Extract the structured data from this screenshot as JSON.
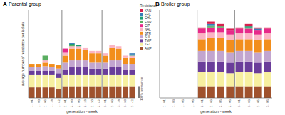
{
  "chart_data": [
    {
      "type": "bar",
      "stacked": true,
      "panel": "A",
      "title": "Parental group",
      "x_label": "generation - week",
      "y_label": "average number of resistance per isolate",
      "tick_labels": "x",
      "legend": "right",
      "annotations": [
        {
          "text": "100% prevalence",
          "value": 1
        }
      ],
      "ylim": [
        0,
        7.5
      ],
      "categories": [
        "1 - 01",
        "1 - 03",
        "1 - 06",
        "1 - 18",
        "1 - 42",
        "2 - 01",
        "2 - 03",
        "2 - 06",
        "2 - 18",
        "2 - 30",
        "2 - 42",
        "3 - 01",
        "3 - 03",
        "3 - 18",
        "3 - 30",
        "3 - 42"
      ],
      "series": [
        {
          "name": "AMP",
          "color": "#a0522d",
          "values": [
            0.9,
            0.9,
            0.9,
            0.9,
            0.8,
            1,
            1,
            1,
            1,
            1,
            1,
            1,
            1,
            1,
            1,
            1
          ]
        },
        {
          "name": "TET",
          "color": "#f7f0a0",
          "values": [
            1.1,
            1.1,
            1.1,
            1.1,
            0.9,
            1,
            1,
            1,
            1,
            1,
            1,
            1,
            1,
            1,
            1,
            1
          ]
        },
        {
          "name": "TMP",
          "color": "#6a3d9a",
          "values": [
            0.3,
            0.3,
            0.3,
            0.3,
            0.4,
            0.4,
            0.6,
            0.6,
            0.6,
            0.5,
            0.5,
            0.5,
            0.6,
            0.6,
            0.4,
            0.4
          ]
        },
        {
          "name": "SUL",
          "color": "#c2a5cf",
          "values": [
            0.3,
            0.3,
            0.4,
            0.3,
            0.4,
            0.6,
            0.6,
            0.6,
            0.6,
            0.5,
            0.5,
            0.5,
            0.6,
            0.6,
            0.5,
            0.5
          ]
        },
        {
          "name": "STR",
          "color": "#f28e1c",
          "values": [
            0.3,
            0.3,
            0.3,
            0.3,
            0.3,
            0.6,
            1.0,
            1.0,
            0.9,
            0.8,
            0.8,
            0.6,
            1.1,
            1.0,
            0.5,
            0.5
          ]
        },
        {
          "name": "NAL",
          "color": "#fbb4c4",
          "values": [
            0,
            0,
            0.2,
            0,
            0,
            0.3,
            0.2,
            0.2,
            0.2,
            0.2,
            0.2,
            0.2,
            0.2,
            0.2,
            0.2,
            0.2
          ]
        },
        {
          "name": "CIP",
          "color": "#e7298a",
          "values": [
            0,
            0,
            0,
            0,
            0,
            0.3,
            0,
            0,
            0,
            0,
            0,
            0,
            0,
            0,
            0,
            0
          ]
        },
        {
          "name": "ENR",
          "color": "#5aae61",
          "values": [
            0,
            0,
            0.4,
            0,
            0,
            0,
            0.1,
            0,
            0,
            0,
            0,
            0,
            0,
            0,
            0,
            0
          ]
        },
        {
          "name": "CHL",
          "color": "#1b9e77",
          "values": [
            0,
            0,
            0,
            0,
            0,
            0,
            0.1,
            0.1,
            0,
            0,
            0,
            0,
            0,
            0,
            0,
            0.1
          ]
        },
        {
          "name": "FFC",
          "color": "#377eb8",
          "values": [
            0,
            0,
            0,
            0,
            0,
            0,
            0.1,
            0,
            0,
            0,
            0,
            0,
            0,
            0,
            0,
            0.1
          ]
        },
        {
          "name": "KAN",
          "color": "#d6204e",
          "values": [
            0,
            0,
            0,
            0,
            0,
            0,
            0,
            0,
            0,
            0,
            0,
            0,
            0,
            0,
            0,
            0
          ]
        }
      ]
    },
    {
      "type": "bar",
      "stacked": true,
      "panel": "B",
      "title": "Broiler group",
      "x_label": "generation - week",
      "tick_labels": "x",
      "ylim": [
        0,
        7.5
      ],
      "categories": [
        "1 - 01",
        "1 - 03",
        "1 - 05",
        "1 - 06",
        "2 - 01",
        "2 - 03",
        "2 - 05",
        "2 - 06",
        "3 - 01",
        "3 - 03",
        "3 - 05",
        "3 - 06"
      ],
      "series": [
        {
          "name": "AMP",
          "values": [
            0,
            0,
            0,
            0,
            1,
            1,
            1,
            1,
            1,
            1,
            1,
            1
          ]
        },
        {
          "name": "TET",
          "values": [
            0,
            0,
            0,
            0,
            1.2,
            1.2,
            1.2,
            1.1,
            1.2,
            1.2,
            1.1,
            1.2
          ]
        },
        {
          "name": "TMP",
          "values": [
            0,
            0,
            0,
            0,
            0.9,
            0.9,
            0.9,
            0.9,
            0.9,
            0.9,
            0.9,
            0.9
          ]
        },
        {
          "name": "SUL",
          "values": [
            0,
            0,
            0,
            0,
            0.9,
            0.9,
            0.9,
            0.9,
            0.9,
            0.9,
            0.9,
            0.9
          ]
        },
        {
          "name": "STR",
          "values": [
            0,
            0,
            0,
            0,
            1.0,
            1.1,
            1.1,
            1.0,
            1.0,
            1.0,
            1.0,
            1.0
          ]
        },
        {
          "name": "NAL",
          "values": [
            0,
            0,
            0,
            0,
            0.5,
            0.5,
            0.5,
            0.5,
            0.5,
            0.5,
            0.5,
            0.5
          ]
        },
        {
          "name": "CIP",
          "values": [
            0,
            0,
            0,
            0,
            0.4,
            0.4,
            0.4,
            0.4,
            0.4,
            0.4,
            0.4,
            0.4
          ]
        },
        {
          "name": "ENR",
          "values": [
            0,
            0,
            0,
            0,
            0,
            0.1,
            0.1,
            0,
            0,
            0.1,
            0,
            0
          ]
        },
        {
          "name": "CHL",
          "values": [
            0,
            0,
            0,
            0,
            0,
            0.1,
            0,
            0,
            0,
            0.1,
            0,
            0
          ]
        },
        {
          "name": "FFC",
          "values": [
            0,
            0,
            0,
            0,
            0,
            0.1,
            0,
            0,
            0,
            0,
            0.1,
            0
          ]
        },
        {
          "name": "KAN",
          "values": [
            0,
            0,
            0,
            0,
            0.1,
            0.2,
            0.2,
            0.1,
            0.1,
            0.2,
            0.1,
            0.1
          ]
        }
      ]
    }
  ]
}
